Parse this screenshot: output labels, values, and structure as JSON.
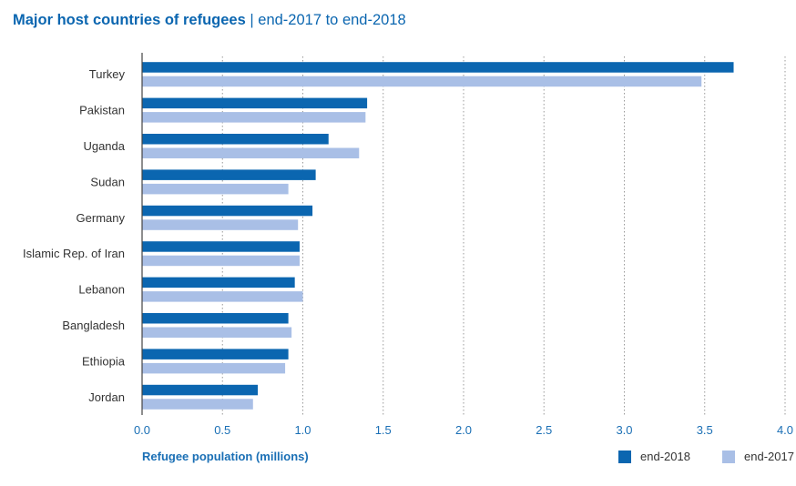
{
  "header": {
    "title": "Major host countries of refugees",
    "separator": "|",
    "subtitle": "end-2017 to end-2018"
  },
  "chart_data": {
    "type": "bar",
    "orientation": "horizontal",
    "categories": [
      "Turkey",
      "Pakistan",
      "Uganda",
      "Sudan",
      "Germany",
      "Islamic Rep. of Iran",
      "Lebanon",
      "Bangladesh",
      "Ethiopia",
      "Jordan"
    ],
    "series": [
      {
        "name": "end-2018",
        "color": "#0b66b0",
        "values": [
          3.68,
          1.4,
          1.16,
          1.08,
          1.06,
          0.98,
          0.95,
          0.91,
          0.91,
          0.72
        ]
      },
      {
        "name": "end-2017",
        "color": "#a9bfe6",
        "values": [
          3.48,
          1.39,
          1.35,
          0.91,
          0.97,
          0.98,
          1.0,
          0.93,
          0.89,
          0.69
        ]
      }
    ],
    "xlabel": "Refugee population (millions)",
    "xlim": [
      0,
      4.0
    ],
    "xticks": [
      "0.0",
      "0.5",
      "1.0",
      "1.5",
      "2.0",
      "2.5",
      "3.0",
      "3.5",
      "4.0"
    ],
    "grid": "vertical dotted",
    "legend_position": "bottom-right"
  }
}
